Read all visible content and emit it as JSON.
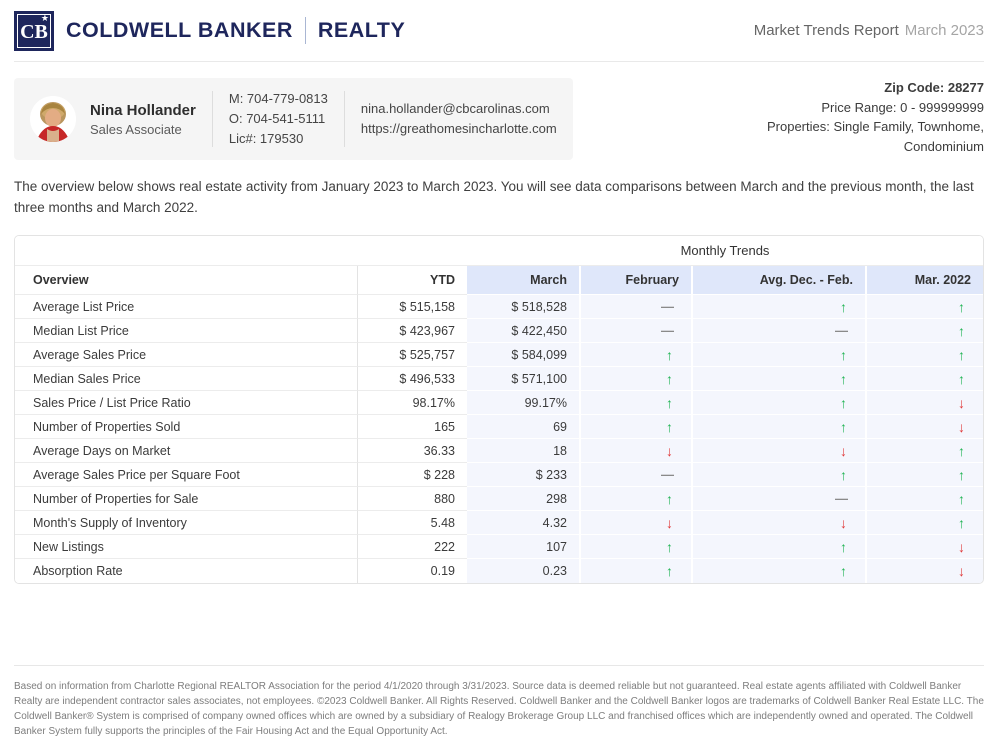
{
  "brand": {
    "monogram": "CB",
    "star": "★",
    "name": "COLDWELL BANKER",
    "division": "REALTY"
  },
  "report": {
    "title": "Market Trends Report",
    "period": "March 2023"
  },
  "agent": {
    "name": "Nina Hollander",
    "role": "Sales Associate",
    "mobile": "M: 704-779-0813",
    "office": "O: 704-541-5111",
    "license": "Lic#: 179530",
    "email": "nina.hollander@cbcarolinas.com",
    "website": "https://greathomesincharlotte.com"
  },
  "filters": {
    "zip": "Zip Code: 28277",
    "price_range": "Price Range: 0 - 999999999",
    "properties": "Properties: Single Family, Townhome, Condominium"
  },
  "overview_text": "The overview below shows real estate activity from January 2023 to March 2023. You will see data comparisons between March and the previous month, the last three months and March 2022.",
  "table": {
    "group_header": "Monthly Trends",
    "columns": [
      "Overview",
      "YTD",
      "March",
      "February",
      "Avg. Dec. - Feb.",
      "Mar. 2022"
    ],
    "rows": [
      {
        "label": "Average List Price",
        "ytd": "$ 515,158",
        "march": "$ 518,528",
        "february": "dash",
        "avg_dec_feb": "up",
        "mar_2022": "up"
      },
      {
        "label": "Median List Price",
        "ytd": "$ 423,967",
        "march": "$ 422,450",
        "february": "dash",
        "avg_dec_feb": "dash",
        "mar_2022": "up"
      },
      {
        "label": "Average Sales Price",
        "ytd": "$ 525,757",
        "march": "$ 584,099",
        "february": "up",
        "avg_dec_feb": "up",
        "mar_2022": "up"
      },
      {
        "label": "Median Sales Price",
        "ytd": "$ 496,533",
        "march": "$ 571,100",
        "february": "up",
        "avg_dec_feb": "up",
        "mar_2022": "up"
      },
      {
        "label": "Sales Price / List Price Ratio",
        "ytd": "98.17%",
        "march": "99.17%",
        "february": "up",
        "avg_dec_feb": "up",
        "mar_2022": "down"
      },
      {
        "label": "Number of Properties Sold",
        "ytd": "165",
        "march": "69",
        "february": "up",
        "avg_dec_feb": "up",
        "mar_2022": "down"
      },
      {
        "label": "Average Days on Market",
        "ytd": "36.33",
        "march": "18",
        "february": "down",
        "avg_dec_feb": "down",
        "mar_2022": "up"
      },
      {
        "label": "Average Sales Price per Square Foot",
        "ytd": "$ 228",
        "march": "$ 233",
        "february": "dash",
        "avg_dec_feb": "up",
        "mar_2022": "up"
      },
      {
        "label": "Number of Properties for Sale",
        "ytd": "880",
        "march": "298",
        "february": "up",
        "avg_dec_feb": "dash",
        "mar_2022": "up"
      },
      {
        "label": "Month's Supply of Inventory",
        "ytd": "5.48",
        "march": "4.32",
        "february": "down",
        "avg_dec_feb": "down",
        "mar_2022": "up"
      },
      {
        "label": "New Listings",
        "ytd": "222",
        "march": "107",
        "february": "up",
        "avg_dec_feb": "up",
        "mar_2022": "down"
      },
      {
        "label": "Absorption Rate",
        "ytd": "0.19",
        "march": "0.23",
        "february": "up",
        "avg_dec_feb": "up",
        "mar_2022": "down"
      }
    ]
  },
  "footer": {
    "disclaimer": "Based on information from Charlotte Regional REALTOR Association for the period 4/1/2020 through 3/31/2023. Source data is deemed reliable but not guaranteed. Real estate agents affiliated with Coldwell Banker Realty are independent contractor sales associates, not employees. ©2023 Coldwell Banker. All Rights Reserved. Coldwell Banker and the Coldwell Banker logos are trademarks of Coldwell Banker Real Estate LLC. The Coldwell Banker® System is comprised of company owned offices which are owned by a subsidiary of Realogy Brokerage Group LLC and franchised offices which are independently owned and operated. The Coldwell Banker System fully supports the principles of the Fair Housing Act and the Equal Opportunity Act."
  },
  "colors": {
    "brand_navy": "#1e265c",
    "header_blue": "#dfe7fa",
    "row_blue": "#f4f6fd",
    "up_green": "#22b455",
    "down_red": "#e03a3a"
  }
}
